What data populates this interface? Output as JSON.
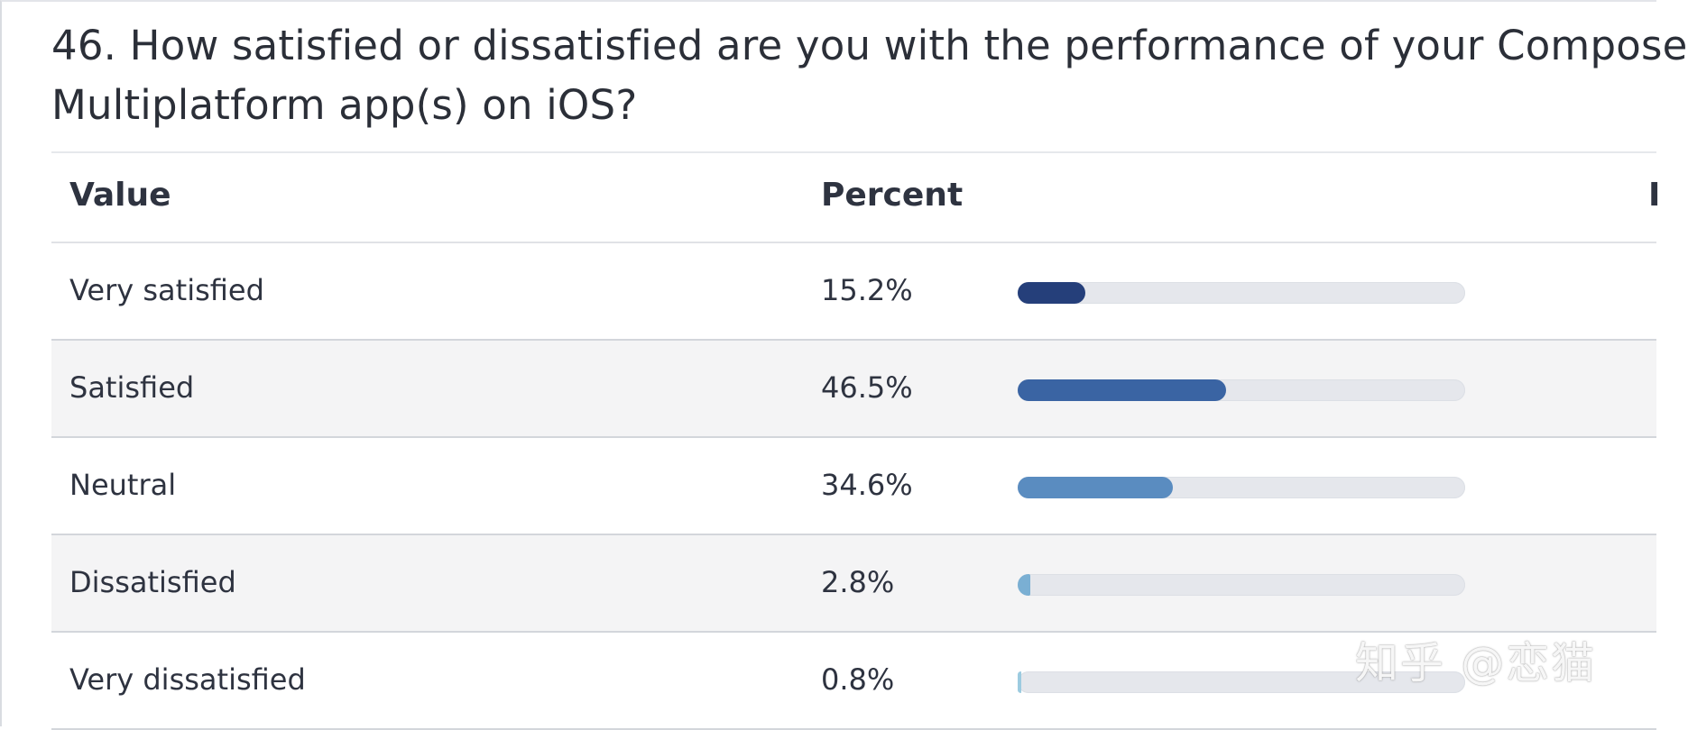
{
  "question": {
    "line1": "46. How satisfied or dissatisfied are you with the performance of your Compose",
    "line2": "Multiplatform app(s) on iOS?"
  },
  "table": {
    "headers": [
      "Value",
      "Percent"
    ]
  },
  "chart_data": {
    "type": "bar",
    "orientation": "horizontal",
    "categories": [
      "Very satisfied",
      "Satisfied",
      "Neutral",
      "Dissatisfied",
      "Very dissatisfied"
    ],
    "values": [
      15.2,
      46.5,
      34.6,
      2.8,
      0.8
    ],
    "value_labels": [
      "15.2%",
      "46.5%",
      "34.6%",
      "2.8%",
      "0.8%"
    ],
    "unit": "%",
    "xlim": [
      0,
      100
    ],
    "colors": [
      "#253f7a",
      "#3a64a3",
      "#5a8cc0",
      "#7aafd3",
      "#9ccbe0"
    ],
    "track_color": "#e5e7ec"
  },
  "watermark": "知乎 @恋猫"
}
